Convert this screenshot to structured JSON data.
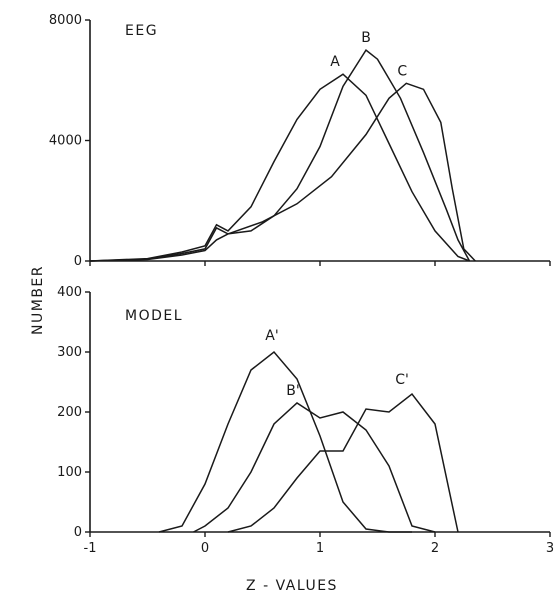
{
  "chart_data": [
    {
      "type": "line",
      "title": "EEG",
      "xlim": [
        -1,
        3
      ],
      "ylim": [
        0,
        8000
      ],
      "y_ticks": [
        "0",
        "4000",
        "8000"
      ],
      "grid": false,
      "series": [
        {
          "name": "A",
          "x": [
            -1,
            -0.5,
            -0.2,
            0,
            0.1,
            0.2,
            0.4,
            0.6,
            0.8,
            1.0,
            1.2,
            1.4,
            1.6,
            1.8,
            2.0,
            2.2,
            2.3
          ],
          "y": [
            0,
            80,
            300,
            500,
            1200,
            1000,
            1800,
            3300,
            4700,
            5700,
            6200,
            5500,
            3900,
            2300,
            1000,
            150,
            0
          ]
        },
        {
          "name": "B",
          "x": [
            -1,
            -0.5,
            -0.2,
            0,
            0.1,
            0.2,
            0.4,
            0.6,
            0.8,
            1.0,
            1.2,
            1.4,
            1.5,
            1.7,
            1.9,
            2.1,
            2.2,
            2.3
          ],
          "y": [
            0,
            60,
            250,
            400,
            1100,
            900,
            1000,
            1500,
            2400,
            3800,
            5800,
            7000,
            6700,
            5400,
            3600,
            1700,
            700,
            0
          ]
        },
        {
          "name": "C",
          "x": [
            -1,
            -0.5,
            -0.2,
            0,
            0.1,
            0.2,
            0.5,
            0.8,
            1.1,
            1.4,
            1.6,
            1.75,
            1.9,
            2.05,
            2.15,
            2.25,
            2.35
          ],
          "y": [
            0,
            50,
            200,
            350,
            700,
            900,
            1300,
            1900,
            2800,
            4200,
            5400,
            5900,
            5700,
            4600,
            2400,
            400,
            0
          ]
        }
      ],
      "annotations": [
        "A",
        "B",
        "C"
      ]
    },
    {
      "type": "line",
      "title": "MODEL",
      "xlim": [
        -1,
        3
      ],
      "ylim": [
        0,
        400
      ],
      "x_ticks": [
        "-1",
        "0",
        "1",
        "2",
        "3"
      ],
      "y_ticks": [
        "0",
        "100",
        "200",
        "300",
        "400"
      ],
      "xlabel": "Z - VALUES",
      "ylabel": "NUMBER",
      "grid": false,
      "series": [
        {
          "name": "A'",
          "x": [
            -0.4,
            -0.2,
            0.0,
            0.2,
            0.4,
            0.6,
            0.8,
            1.0,
            1.2,
            1.4,
            1.6,
            1.8
          ],
          "y": [
            0,
            10,
            80,
            180,
            270,
            300,
            255,
            160,
            50,
            5,
            0,
            0
          ]
        },
        {
          "name": "B'",
          "x": [
            -0.1,
            0.0,
            0.2,
            0.4,
            0.6,
            0.8,
            1.0,
            1.2,
            1.4,
            1.6,
            1.8,
            2.0
          ],
          "y": [
            0,
            10,
            40,
            100,
            180,
            215,
            190,
            200,
            170,
            110,
            10,
            0
          ]
        },
        {
          "name": "C'",
          "x": [
            0.2,
            0.4,
            0.6,
            0.8,
            1.0,
            1.2,
            1.4,
            1.6,
            1.8,
            2.0,
            2.2
          ],
          "y": [
            0,
            10,
            40,
            90,
            135,
            135,
            205,
            200,
            230,
            180,
            0
          ]
        }
      ],
      "annotations": [
        "A'",
        "B'",
        "C'"
      ]
    }
  ]
}
